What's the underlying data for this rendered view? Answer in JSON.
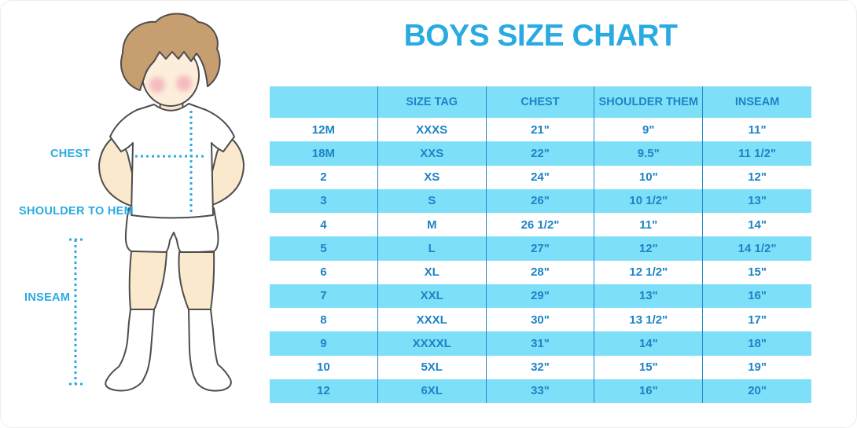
{
  "title": "BOYS SIZE CHART",
  "figure": {
    "chest_label": "CHEST",
    "shoulder_to_hem_label": "SHOULDER TO HEM",
    "inseam_label": "INSEAM",
    "illustration": "boy-standing-front-view"
  },
  "chart_data": {
    "type": "table",
    "title": "BOYS SIZE CHART",
    "columns": [
      "",
      "SIZE TAG",
      "CHEST",
      "SHOULDER THEM",
      "INSEAM"
    ],
    "rows": [
      [
        "12M",
        "XXXS",
        "21\"",
        "9\"",
        "11\""
      ],
      [
        "18M",
        "XXS",
        "22\"",
        "9.5\"",
        "11 1/2\""
      ],
      [
        "2",
        "XS",
        "24\"",
        "10\"",
        "12\""
      ],
      [
        "3",
        "S",
        "26\"",
        "10 1/2\"",
        "13\""
      ],
      [
        "4",
        "M",
        "26 1/2\"",
        "11\"",
        "14\""
      ],
      [
        "5",
        "L",
        "27\"",
        "12\"",
        "14 1/2\""
      ],
      [
        "6",
        "XL",
        "28\"",
        "12 1/2\"",
        "15\""
      ],
      [
        "7",
        "XXL",
        "29\"",
        "13\"",
        "16\""
      ],
      [
        "8",
        "XXXL",
        "30\"",
        "13 1/2\"",
        "17\""
      ],
      [
        "9",
        "XXXXL",
        "31\"",
        "14\"",
        "18\""
      ],
      [
        "10",
        "5XL",
        "32\"",
        "15\"",
        "19\""
      ],
      [
        "12",
        "6XL",
        "33\"",
        "16\"",
        "20\""
      ]
    ],
    "layout": "header row and every second data row filled light blue, others white; thin blue column dividers"
  },
  "colors": {
    "accent_blue": "#29ABE2",
    "table_text_blue": "#1C83C6",
    "row_fill_light_blue": "#7EE0F8",
    "column_divider_blue": "#2489C7",
    "skin": "#FAE9CC",
    "hair_brown": "#C69E70",
    "outline_gray": "#4D4D4D",
    "cheek_pink": "#F2A6B4",
    "background": "#FFFFFF"
  }
}
